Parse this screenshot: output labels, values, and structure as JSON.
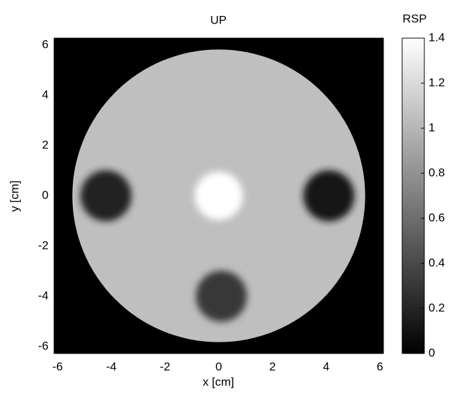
{
  "chart_data": {
    "type": "heatmap",
    "title": "UP",
    "x_label": "x [cm]",
    "y_label": "y [cm]",
    "colorbar_label": "RSP",
    "xlim": [
      -6.13,
      6.13
    ],
    "ylim": [
      -6.28,
      6.28
    ],
    "xticks": [
      -6,
      -4,
      -2,
      0,
      2,
      4,
      6
    ],
    "yticks": [
      -6,
      -4,
      -2,
      0,
      2,
      4,
      6
    ],
    "background": 0,
    "colormap": "gray",
    "clim": [
      0,
      1.4
    ],
    "cticks": [
      0,
      0.2,
      0.4,
      0.6,
      0.8,
      1,
      1.2,
      1.4
    ],
    "regions": [
      {
        "x": 0,
        "y": 0,
        "r": 5.45,
        "value": 1.05
      },
      {
        "x": -4.2,
        "y": 0,
        "r": 0.95,
        "value": 0.2
      },
      {
        "x": 4.1,
        "y": 0,
        "r": 0.95,
        "value": 0.12
      },
      {
        "x": 0.1,
        "y": -4,
        "r": 0.95,
        "value": 0.3
      },
      {
        "x": 0,
        "y": 0,
        "r": 0.9,
        "value": 1.4
      }
    ]
  }
}
